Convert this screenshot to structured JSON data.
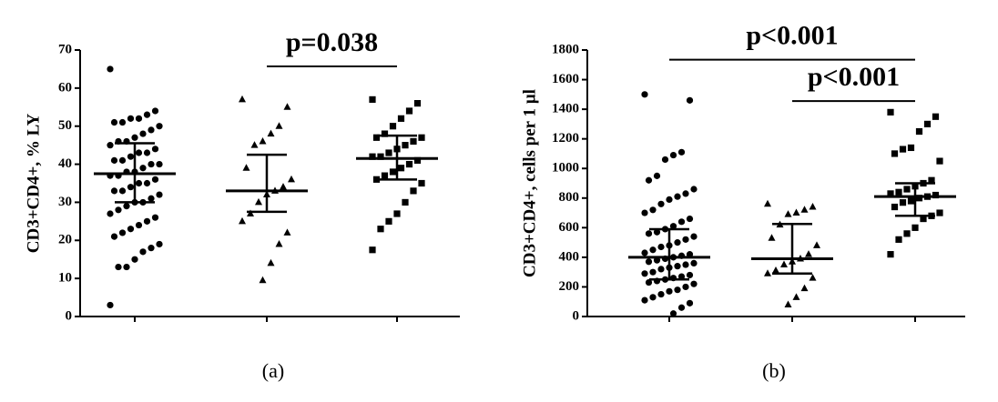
{
  "chart_data": [
    {
      "type": "dot_plot",
      "caption": "(a)",
      "y_label": "CD3+CD4+, % LY",
      "ylim": [
        0,
        70
      ],
      "yticks": [
        0,
        10,
        20,
        30,
        40,
        50,
        60,
        70
      ],
      "groups": [
        {
          "marker": "circle",
          "median": 37.5,
          "q1": 30,
          "q3": 45.5,
          "values": [
            65,
            54,
            53,
            52,
            52,
            51,
            51,
            50,
            49,
            48,
            47,
            46,
            46,
            45,
            44,
            43,
            43,
            42,
            41,
            41,
            40,
            40,
            39,
            38,
            38,
            37,
            37,
            36,
            35,
            35,
            34,
            33,
            33,
            32,
            31,
            30,
            30,
            29,
            28,
            27,
            26,
            25,
            24,
            23,
            22,
            21,
            19,
            18,
            17,
            15,
            13,
            13,
            3
          ]
        },
        {
          "marker": "triangle",
          "median": 33,
          "q1": 27.5,
          "q3": 42.5,
          "values": [
            57,
            55,
            50,
            48,
            46,
            45,
            39,
            36,
            34,
            33,
            32,
            30,
            27,
            25,
            22,
            19,
            14,
            9.5
          ]
        },
        {
          "marker": "square",
          "median": 41.5,
          "q1": 36,
          "q3": 47.5,
          "values": [
            57,
            56,
            54,
            52,
            50,
            48,
            47,
            47,
            46,
            45,
            44,
            43,
            42,
            42,
            41,
            40,
            39,
            38,
            37,
            36,
            35,
            33,
            30,
            27,
            25,
            23,
            17.5
          ]
        }
      ],
      "comparisons": [
        {
          "groups": [
            1,
            2
          ],
          "y": 65.7,
          "label": "p=0.038"
        }
      ]
    },
    {
      "type": "dot_plot",
      "caption": "(b)",
      "y_label": "CD3+CD4+, cells per 1 µl",
      "ylim": [
        0,
        1800
      ],
      "yticks": [
        0,
        200,
        400,
        600,
        800,
        1000,
        1200,
        1400,
        1600,
        1800
      ],
      "groups": [
        {
          "marker": "circle",
          "median": 400,
          "q1": 250,
          "q3": 590,
          "values": [
            1500,
            1460,
            1110,
            1090,
            1060,
            950,
            920,
            860,
            830,
            810,
            790,
            760,
            720,
            700,
            660,
            640,
            610,
            590,
            570,
            560,
            540,
            520,
            500,
            480,
            470,
            450,
            430,
            420,
            410,
            400,
            390,
            380,
            370,
            360,
            350,
            340,
            330,
            320,
            300,
            290,
            280,
            270,
            260,
            250,
            240,
            230,
            220,
            200,
            180,
            170,
            150,
            130,
            110,
            90,
            60,
            20
          ]
        },
        {
          "marker": "triangle",
          "median": 390,
          "q1": 290,
          "q3": 625,
          "values": [
            760,
            740,
            720,
            700,
            690,
            620,
            530,
            480,
            420,
            390,
            370,
            350,
            310,
            290,
            260,
            190,
            130,
            80
          ]
        },
        {
          "marker": "square",
          "median": 810,
          "q1": 680,
          "q3": 900,
          "values": [
            1380,
            1350,
            1300,
            1250,
            1140,
            1130,
            1100,
            1050,
            920,
            900,
            880,
            860,
            840,
            830,
            820,
            810,
            800,
            780,
            770,
            740,
            700,
            680,
            660,
            600,
            560,
            520,
            420
          ]
        }
      ],
      "comparisons": [
        {
          "groups": [
            0,
            2
          ],
          "y": 1735,
          "label": "p<0.001"
        },
        {
          "groups": [
            1,
            2
          ],
          "y": 1455,
          "label": "p<0.001"
        }
      ]
    }
  ]
}
